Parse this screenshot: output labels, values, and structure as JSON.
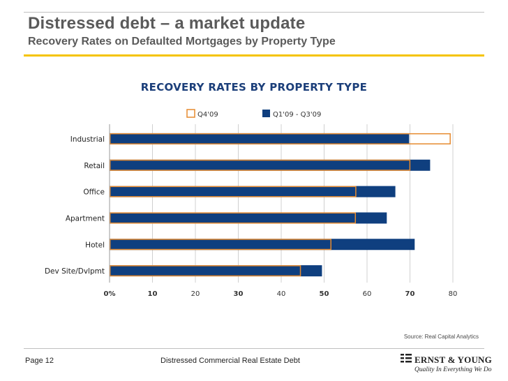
{
  "header": {
    "title": "Distressed debt – a market update",
    "subtitle": "Recovery Rates on Defaulted Mortgages by Property Type"
  },
  "chart_data": {
    "type": "bar",
    "orientation": "horizontal",
    "title": "RECOVERY RATES BY PROPERTY TYPE",
    "categories": [
      "Industrial",
      "Retail",
      "Office",
      "Apartment",
      "Hotel",
      "Dev Site/Dvlpmt"
    ],
    "series": [
      {
        "name": "Q4'09",
        "values": [
          79.5,
          70.1,
          57.5,
          57.4,
          51.7,
          44.6
        ],
        "color": "#e68a2e",
        "style": "outline"
      },
      {
        "name": "Q1'09 - Q3'09",
        "values": [
          69.8,
          74.7,
          66.6,
          64.6,
          71.1,
          49.5
        ],
        "color": "#0f3f7f",
        "style": "filled"
      }
    ],
    "x_ticks": [
      "0%",
      "10",
      "20",
      "30",
      "40",
      "50",
      "60",
      "70",
      "80"
    ],
    "xlim": [
      0,
      80
    ],
    "grid": true,
    "legend_position": "top"
  },
  "source": "Source: Real Capital Analytics",
  "footer": {
    "page": "Page 12",
    "title": "Distressed Commercial Real Estate Debt",
    "logo_name": "ERNST & YOUNG",
    "logo_tagline": "Quality In Everything We Do"
  }
}
